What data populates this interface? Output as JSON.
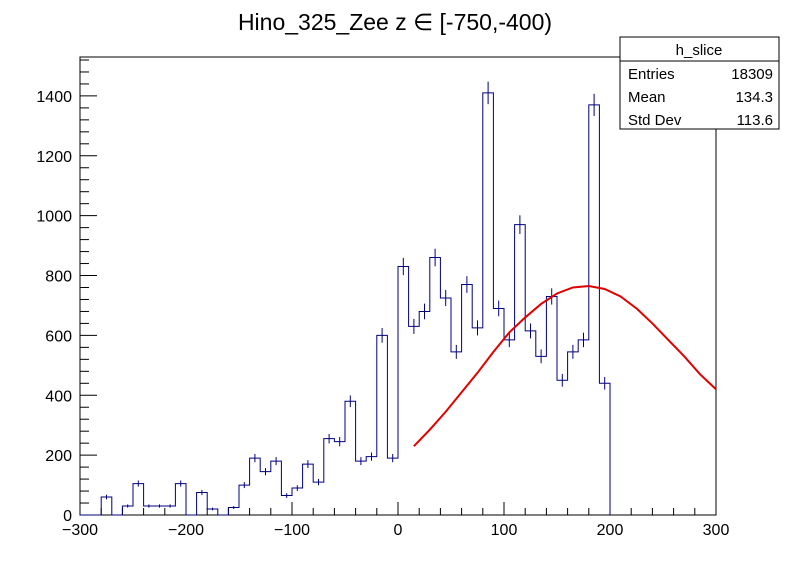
{
  "chart_data": {
    "type": "histogram",
    "title": "Hino_325_Zee z  ∈ [-750,-400)",
    "xlabel": "",
    "ylabel": "",
    "xlim": [
      -300,
      300
    ],
    "ylim": [
      0,
      1530
    ],
    "x_ticks": [
      -300,
      -200,
      -100,
      0,
      100,
      200,
      300
    ],
    "x_tick_labels": [
      "−300",
      "−200",
      "−100",
      "0",
      "100",
      "200",
      "300"
    ],
    "y_ticks": [
      0,
      200,
      400,
      600,
      800,
      1000,
      1200,
      1400
    ],
    "y_tick_labels": [
      "0",
      "200",
      "400",
      "600",
      "800",
      "1000",
      "1200",
      "1400"
    ],
    "grid": false,
    "bin_width": 10,
    "bin_edges_start": -300,
    "series": [
      {
        "kind": "histogram",
        "color": "#000080",
        "values": [
          0,
          0,
          60,
          0,
          30,
          105,
          30,
          30,
          30,
          105,
          0,
          75,
          20,
          0,
          25,
          100,
          190,
          145,
          180,
          65,
          90,
          170,
          110,
          255,
          245,
          380,
          180,
          195,
          600,
          190,
          830,
          630,
          680,
          860,
          725,
          545,
          770,
          625,
          1410,
          690,
          585,
          970,
          615,
          530,
          730,
          450,
          545,
          585,
          1370,
          440
        ]
      },
      {
        "kind": "fit",
        "color": "#e00000",
        "x": [
          15,
          30,
          45,
          60,
          75,
          90,
          105,
          120,
          135,
          150,
          165,
          180,
          195,
          210,
          225,
          240,
          255,
          270,
          285,
          300
        ],
        "y": [
          230,
          285,
          345,
          410,
          475,
          545,
          610,
          660,
          705,
          740,
          760,
          765,
          755,
          730,
          690,
          640,
          585,
          530,
          470,
          420
        ]
      }
    ],
    "stats_box": {
      "name": "h_slice",
      "rows": [
        {
          "label": "Entries",
          "value": "18309"
        },
        {
          "label": "Mean",
          "value": "134.3"
        },
        {
          "label": "Std Dev",
          "value": "113.6"
        }
      ]
    }
  }
}
